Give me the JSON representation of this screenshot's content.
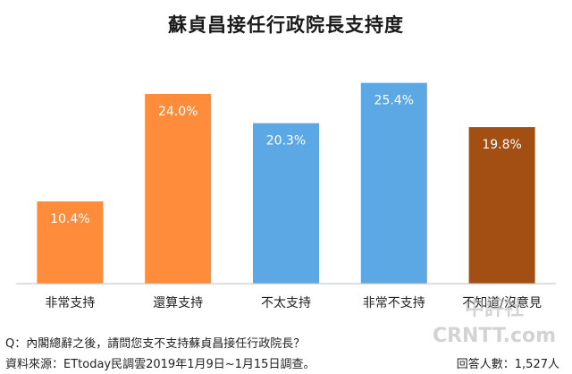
{
  "title": "蘇貞昌接任行政院長支持度",
  "question": "Q：內閣總辭之後，請問您支不支持蘇貞昌接任行政院長？",
  "source": "資料來源：ETtoday民調雲2019年1月9日~1月15日調查。",
  "respondents": "回答人數：1,527人",
  "watermark": {
    "line1": "中評社",
    "line2": "CRNTT.com"
  },
  "chart_data": {
    "type": "bar",
    "title": "蘇貞昌接任行政院長支持度",
    "xlabel": "",
    "ylabel": "",
    "categories": [
      "非常支持",
      "還算支持",
      "不太支持",
      "非常不支持",
      "不知道/沒意見"
    ],
    "values": [
      10.4,
      24.0,
      20.3,
      25.4,
      19.8
    ],
    "data_labels": [
      "10.4%",
      "24.0%",
      "20.3%",
      "25.4%",
      "19.8%"
    ],
    "colors": [
      "#FF8C3A",
      "#FF8C3A",
      "#5BA8E4",
      "#5BA8E4",
      "#A34E12"
    ],
    "ylim": [
      0,
      30
    ],
    "grid": false,
    "legend": "none"
  }
}
